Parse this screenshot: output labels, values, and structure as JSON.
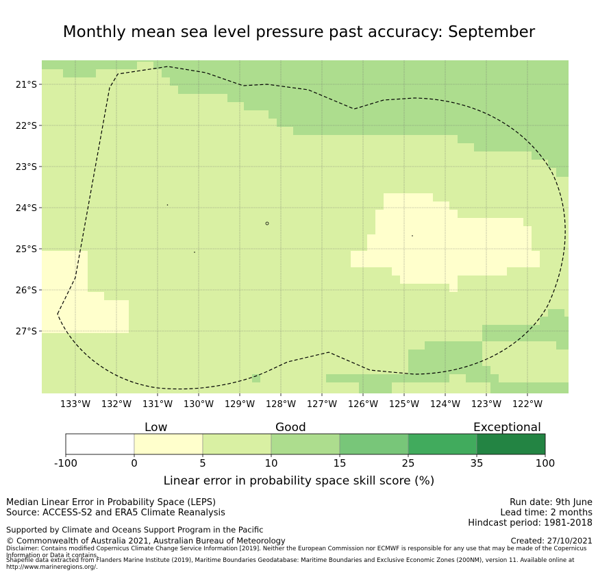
{
  "title": "Monthly mean sea level pressure past accuracy: September",
  "map": {
    "lon_ticks": [
      "133°W",
      "132°W",
      "131°W",
      "130°W",
      "129°W",
      "128°W",
      "127°W",
      "126°W",
      "125°W",
      "124°W",
      "123°W",
      "122°W"
    ],
    "lat_ticks": [
      "21°S",
      "22°S",
      "23°S",
      "24°S",
      "25°S",
      "26°S",
      "27°S"
    ],
    "colors": {
      "very_good": "#addd8e",
      "good": "#d9f0a3",
      "low": "#ffffcc"
    }
  },
  "legend": {
    "categories": [
      {
        "label": "Low"
      },
      {
        "label": "Good"
      },
      {
        "label": "Exceptional"
      }
    ],
    "bins": [
      {
        "from": -100,
        "to": 0,
        "color": "#ffffff"
      },
      {
        "from": 0,
        "to": 5,
        "color": "#ffffcc"
      },
      {
        "from": 5,
        "to": 10,
        "color": "#d9f0a3"
      },
      {
        "from": 10,
        "to": 15,
        "color": "#addd8e"
      },
      {
        "from": 15,
        "to": 25,
        "color": "#78c679"
      },
      {
        "from": 25,
        "to": 35,
        "color": "#41ab5d"
      },
      {
        "from": 35,
        "to": 100,
        "color": "#238443"
      }
    ],
    "ticks": [
      "-100",
      "0",
      "5",
      "10",
      "15",
      "25",
      "35",
      "100"
    ],
    "axis_label": "Linear error in probability space skill score (%)"
  },
  "footer": {
    "line1": "Median Linear Error in Probability Space (LEPS)",
    "line2": "Source: ACCESS-S2 and ERA5 Climate Reanalysis",
    "supported": "Supported by Climate and Oceans Support Program in the Pacific",
    "copyright": "© Commonwealth of Australia 2021, Australian Bureau of Meteorology",
    "disclaimer1": "Disclaimer: Contains modified Copernicus Climate Change Service Information [2019]. Neither the European Commission nor ECMWF is responsible for any use that may be made of the Copernicus Information or Data it contains.",
    "disclaimer2": "Shapefile data extracted from Flanders Marine Institute (2019), Maritime Boundaries Geodatabase: Maritime Boundaries and Exclusive Economic Zones (200NM), version 11. Available online at http://www.marineregions.org/.",
    "run_date": "Run date: 9th June",
    "lead_time": "Lead time: 2 months",
    "hindcast": "Hindcast period: 1981-2018",
    "created": "Created: 27/10/2021"
  }
}
